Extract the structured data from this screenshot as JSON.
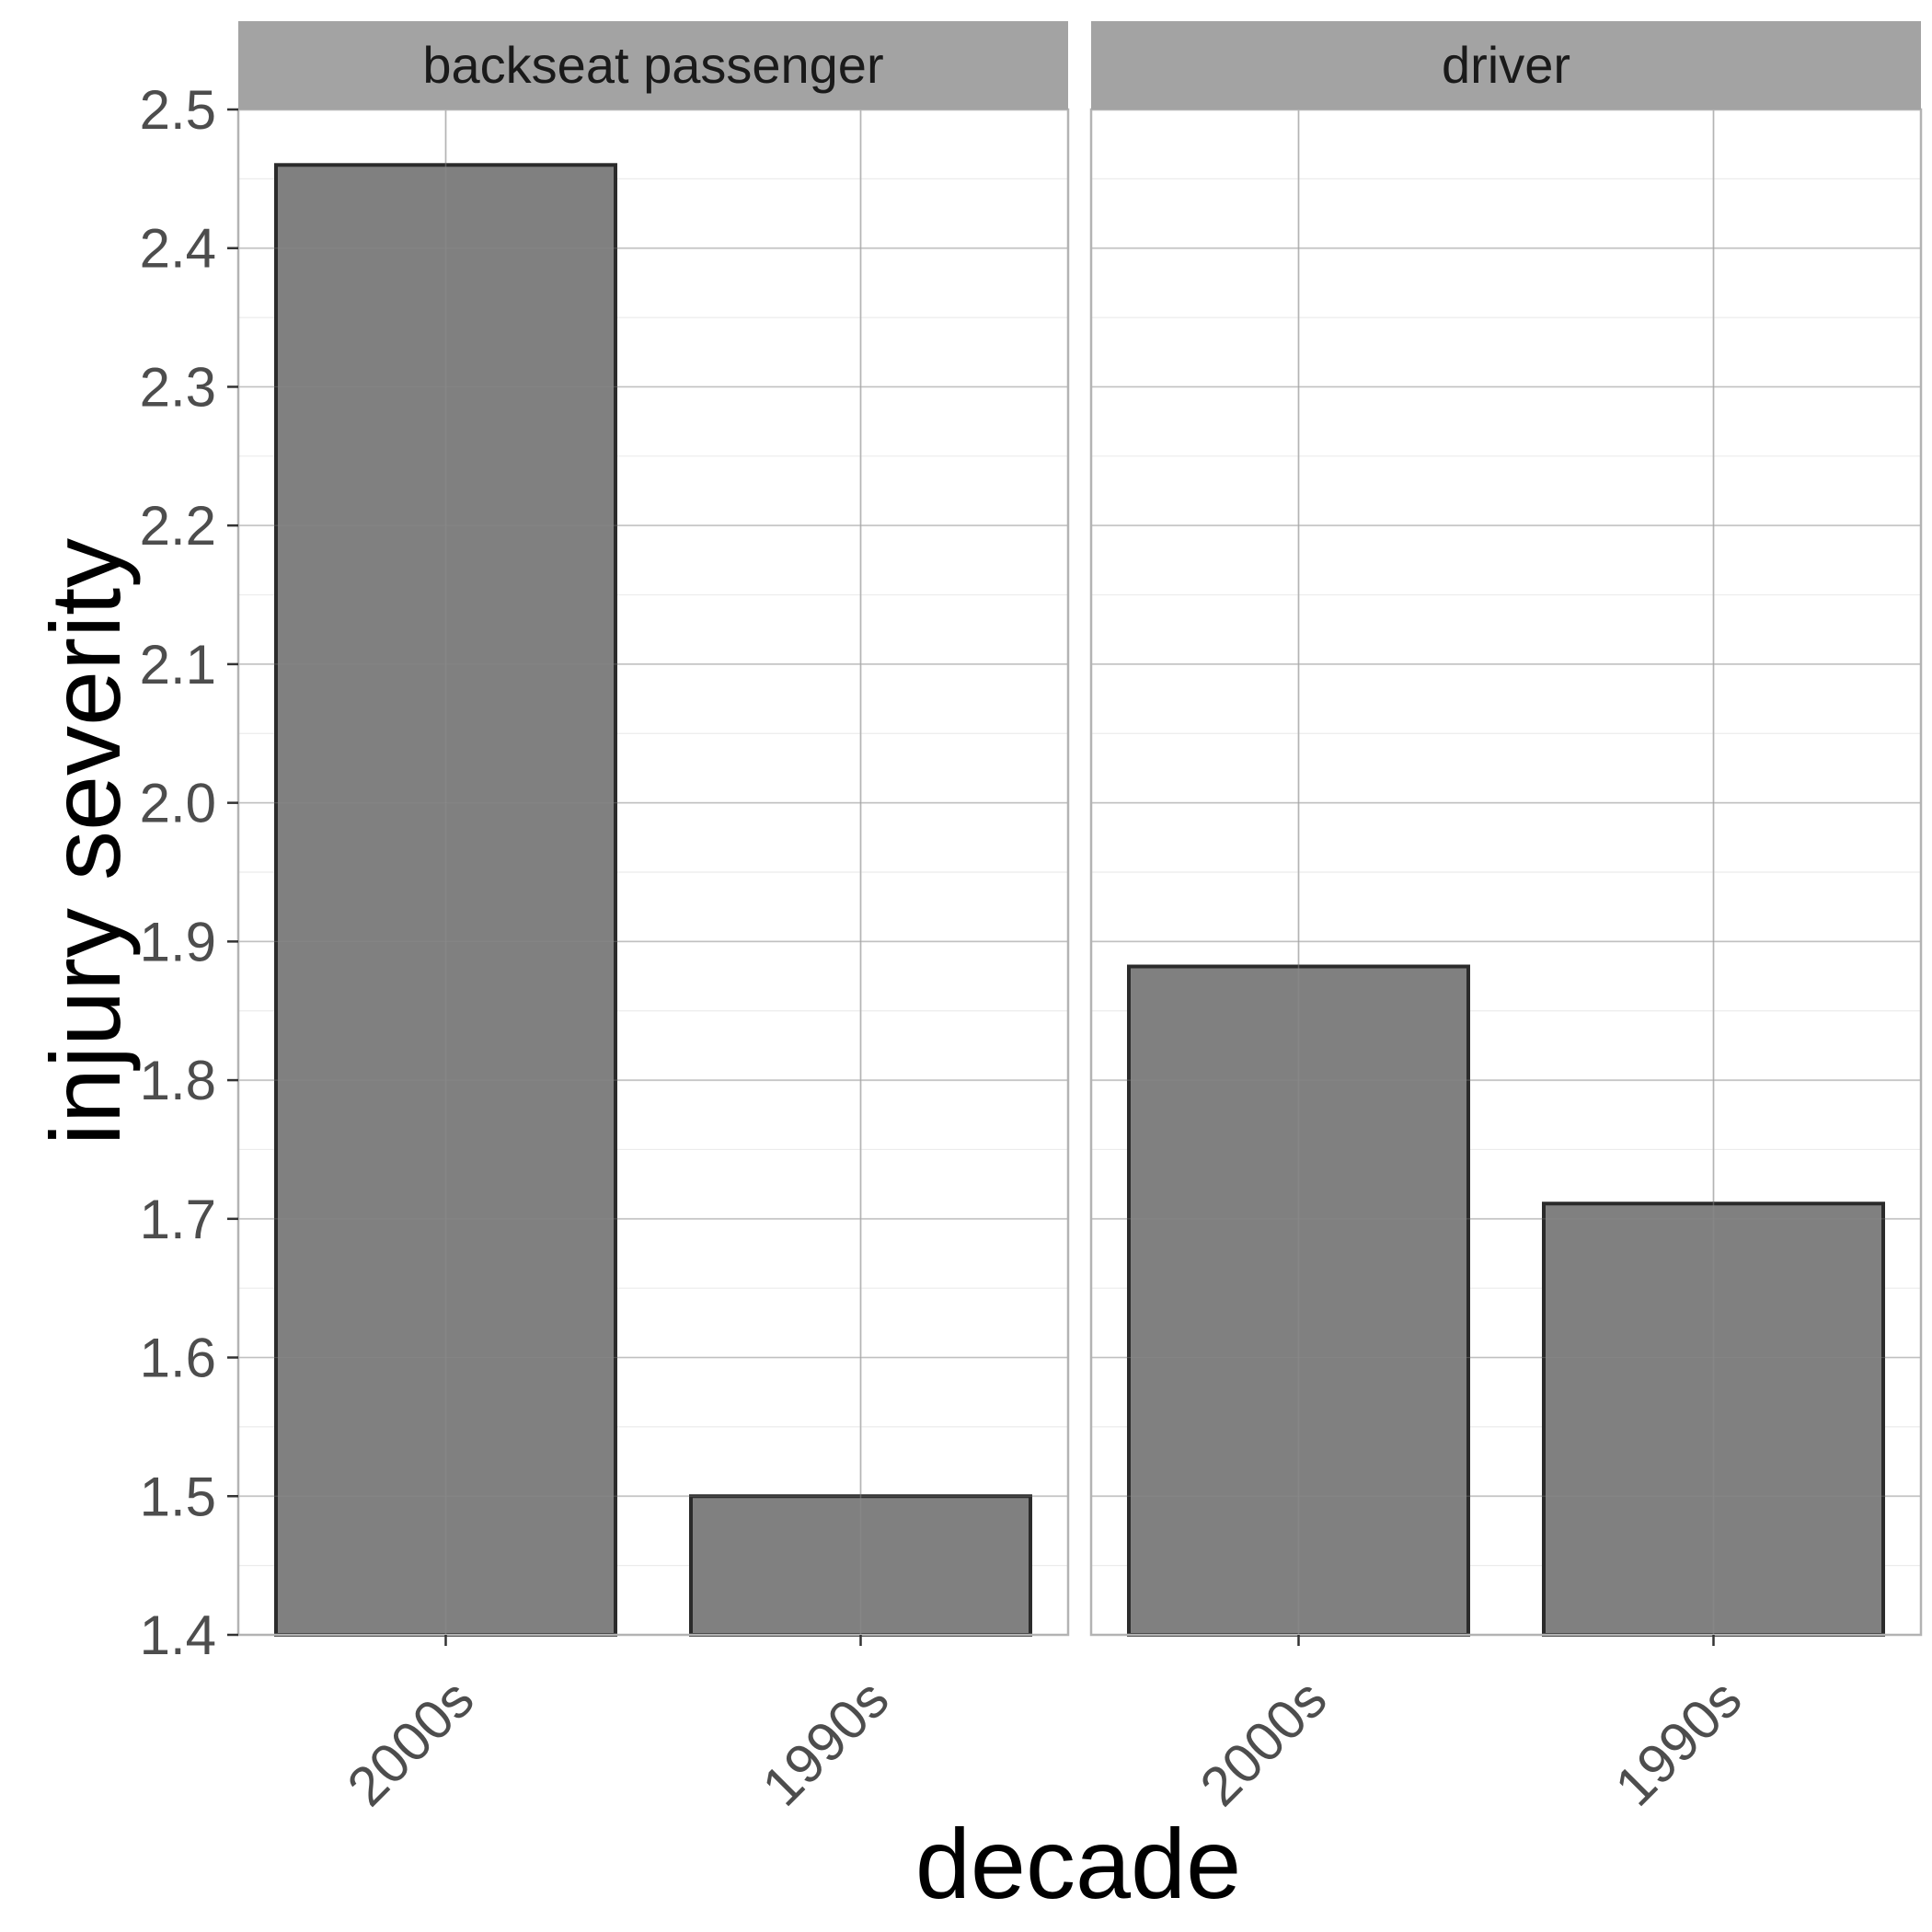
{
  "chart_data": {
    "type": "bar",
    "facet_var": "strip",
    "xlabel": "decade",
    "ylabel": "injury severity",
    "ylim": [
      1.4,
      2.5
    ],
    "y_ticks": [
      "1.4",
      "1.5",
      "1.6",
      "1.7",
      "1.8",
      "1.9",
      "2.0",
      "2.1",
      "2.2",
      "2.3",
      "2.4",
      "2.5"
    ],
    "categories": [
      "2000s",
      "1990s"
    ],
    "grid": true,
    "legend": "none",
    "panels": [
      {
        "strip": "backseat passenger",
        "values": [
          2.46,
          1.5
        ]
      },
      {
        "strip": "driver",
        "values": [
          1.882,
          1.711
        ]
      }
    ],
    "colors": {
      "bar_fill": "#808080",
      "bar_stroke": "#2b2b2b",
      "strip_fill": "#a3a3a3",
      "grid": "#dcdcdc",
      "panel_border": "#b3b3b3"
    }
  }
}
